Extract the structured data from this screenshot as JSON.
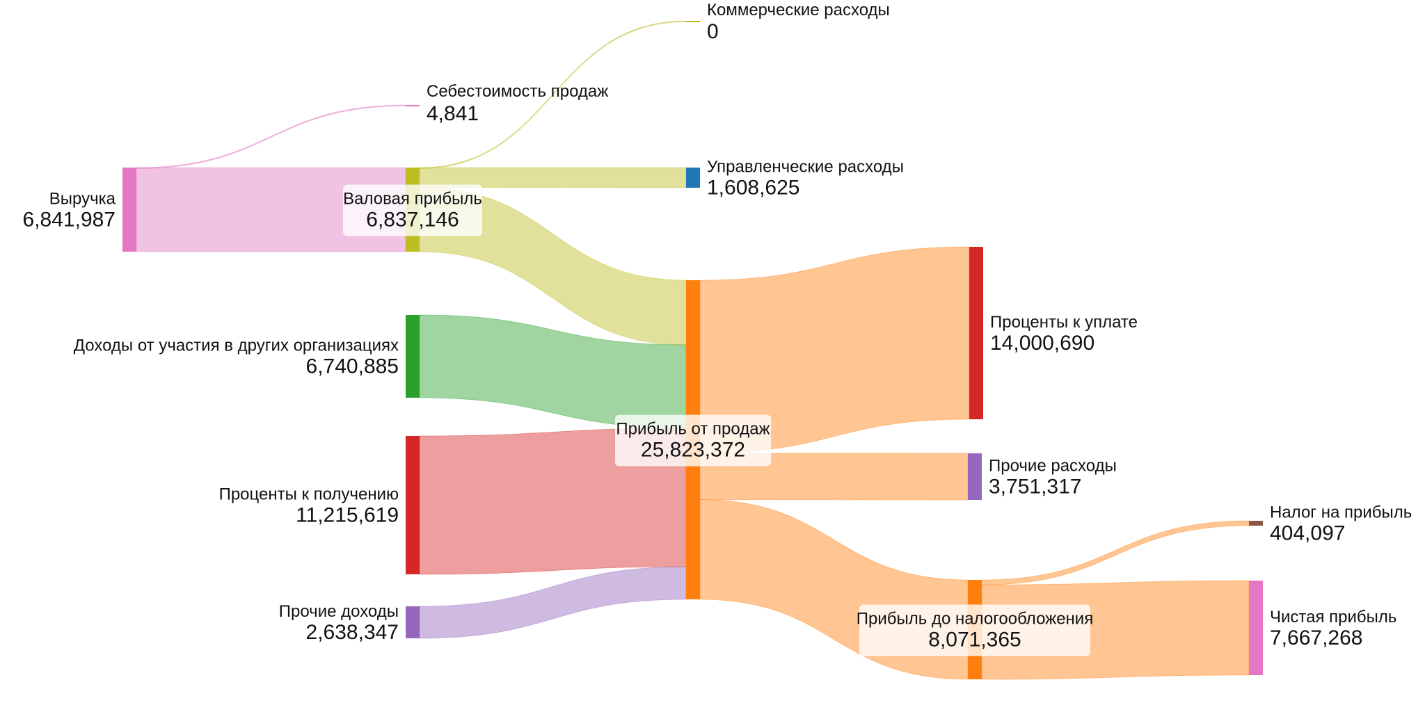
{
  "colors": {
    "pink": "#e377c2",
    "olive": "#bcbd22",
    "blue": "#1f77b4",
    "green": "#2ca02c",
    "red": "#d62728",
    "purple": "#9467bd",
    "orange": "#ff7f0e",
    "brown": "#8c564b"
  },
  "chart_data": {
    "type": "sankey",
    "nodes": [
      {
        "id": "revenue",
        "name": "Выручка",
        "value": "6,841,987",
        "color": "#e377c2"
      },
      {
        "id": "cost",
        "name": "Себестоимость продаж",
        "value": "4,841",
        "color": "#e377c2"
      },
      {
        "id": "gross",
        "name": "Валовая прибыль",
        "value": "6,837,146",
        "color": "#bcbd22"
      },
      {
        "id": "commercial",
        "name": "Коммерческие расходы",
        "value": "0",
        "color": "#bcbd22"
      },
      {
        "id": "admin",
        "name": "Управленческие расходы",
        "value": "1,608,625",
        "color": "#1f77b4"
      },
      {
        "id": "participation",
        "name": "Доходы от участия в других организациях",
        "value": "6,740,885",
        "color": "#2ca02c"
      },
      {
        "id": "int_income",
        "name": "Проценты к получению",
        "value": "11,215,619",
        "color": "#d62728"
      },
      {
        "id": "other_income",
        "name": "Прочие доходы",
        "value": "2,638,347",
        "color": "#9467bd"
      },
      {
        "id": "sales_profit",
        "name": "Прибыль от продаж",
        "value": "25,823,372",
        "color": "#ff7f0e"
      },
      {
        "id": "int_payable",
        "name": "Проценты к уплате",
        "value": "14,000,690",
        "color": "#d62728"
      },
      {
        "id": "other_exp",
        "name": "Прочие расходы",
        "value": "3,751,317",
        "color": "#9467bd"
      },
      {
        "id": "pretax",
        "name": "Прибыль до налогообложения",
        "value": "8,071,365",
        "color": "#ff7f0e"
      },
      {
        "id": "tax",
        "name": "Налог на прибыль",
        "value": "404,097",
        "color": "#8c564b"
      },
      {
        "id": "net",
        "name": "Чистая прибыль",
        "value": "7,667,268",
        "color": "#e377c2"
      }
    ],
    "links": [
      {
        "source": "revenue",
        "target": "cost",
        "value": 4841
      },
      {
        "source": "revenue",
        "target": "gross",
        "value": 6837146
      },
      {
        "source": "gross",
        "target": "commercial",
        "value": 0
      },
      {
        "source": "gross",
        "target": "admin",
        "value": 1608625
      },
      {
        "source": "gross",
        "target": "sales_profit",
        "value": 5228521
      },
      {
        "source": "participation",
        "target": "sales_profit",
        "value": 6740885
      },
      {
        "source": "int_income",
        "target": "sales_profit",
        "value": 11215619
      },
      {
        "source": "other_income",
        "target": "sales_profit",
        "value": 2638347
      },
      {
        "source": "sales_profit",
        "target": "int_payable",
        "value": 14000690
      },
      {
        "source": "sales_profit",
        "target": "other_exp",
        "value": 3751317
      },
      {
        "source": "sales_profit",
        "target": "pretax",
        "value": 8071365
      },
      {
        "source": "pretax",
        "target": "tax",
        "value": 404097
      },
      {
        "source": "pretax",
        "target": "net",
        "value": 7667268
      }
    ]
  }
}
